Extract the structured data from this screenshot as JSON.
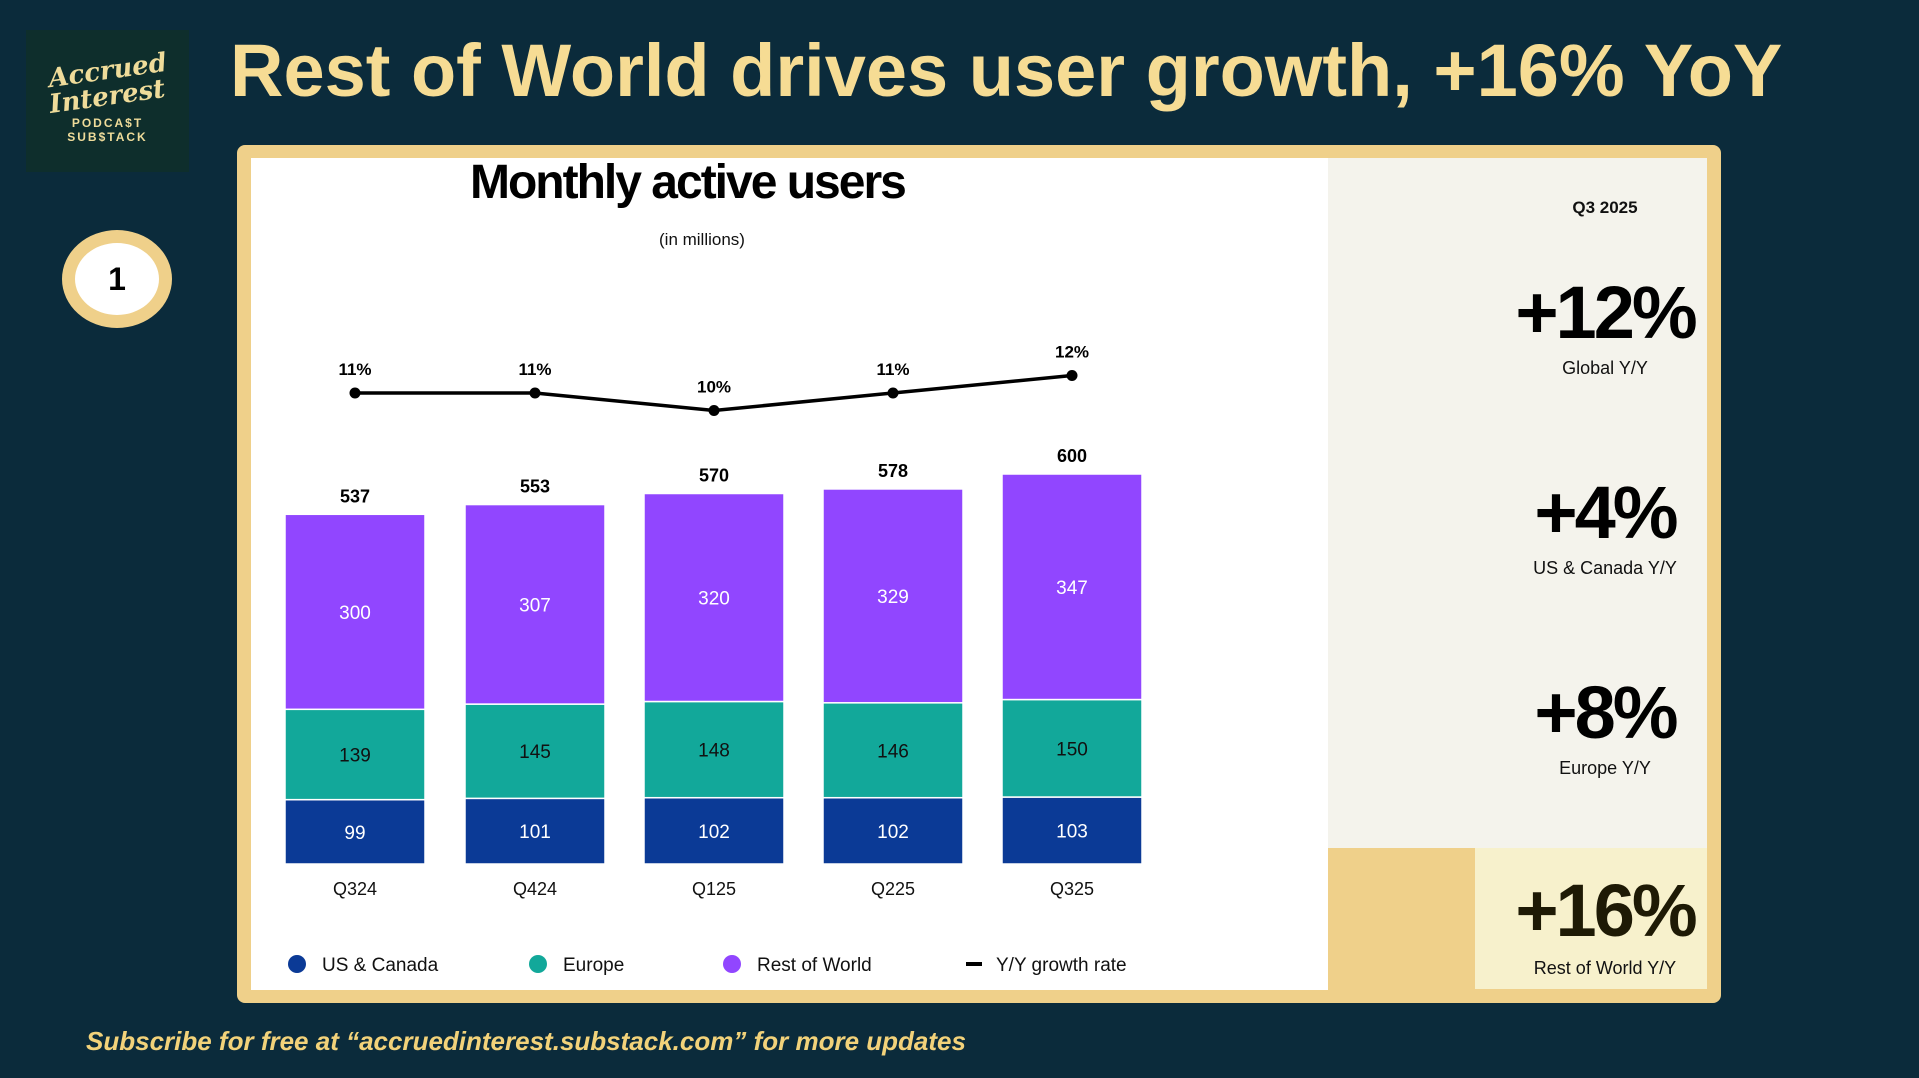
{
  "header": {
    "title": "Rest of World drives user growth, +16% YoY",
    "badge_number": "1"
  },
  "logo": {
    "line1": "Accrued",
    "line2": "Interest",
    "line3": "PODCA$T",
    "line4": "SUB$TACK"
  },
  "chart_data": {
    "type": "bar",
    "title": "Monthly active users",
    "subtitle": "(in millions)",
    "categories": [
      "Q324",
      "Q424",
      "Q125",
      "Q225",
      "Q325"
    ],
    "series": [
      {
        "name": "US & Canada",
        "color": "#0b3a96",
        "values": [
          99,
          101,
          102,
          102,
          103
        ]
      },
      {
        "name": "Europe",
        "color": "#12a89a",
        "values": [
          139,
          145,
          148,
          146,
          150
        ]
      },
      {
        "name": "Rest of World",
        "color": "#9146ff",
        "values": [
          300,
          307,
          320,
          329,
          347
        ]
      }
    ],
    "totals": [
      537,
      553,
      570,
      578,
      600
    ],
    "line": {
      "name": "Y/Y growth rate",
      "values": [
        11,
        11,
        10,
        11,
        12
      ],
      "labels": [
        "11%",
        "11%",
        "10%",
        "11%",
        "12%"
      ]
    },
    "stacked": true,
    "grid": false,
    "legend": "bottom"
  },
  "panel": {
    "period": "Q3 2025",
    "stats": [
      {
        "value": "+12%",
        "label": "Global Y/Y"
      },
      {
        "value": "+4%",
        "label": "US & Canada Y/Y"
      },
      {
        "value": "+8%",
        "label": "Europe Y/Y"
      },
      {
        "value": "+16%",
        "label": "Rest of World Y/Y"
      }
    ]
  },
  "footer": "Subscribe for free at “accruedinterest.substack.com” for more updates"
}
